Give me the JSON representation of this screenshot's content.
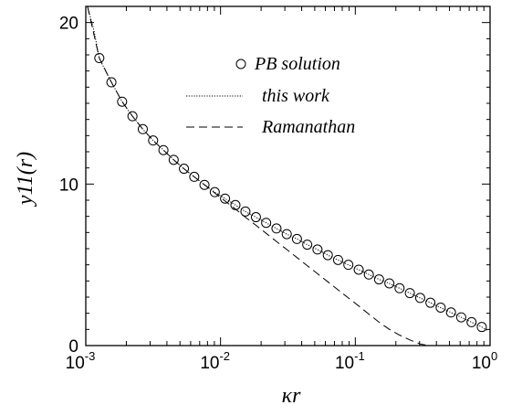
{
  "chart_data": {
    "type": "line",
    "xlabel": "κr",
    "ylabel": "y11(r)",
    "x_scale": "log",
    "xlim": [
      0.001,
      1
    ],
    "ylim": [
      0,
      21
    ],
    "x_ticks": [
      {
        "value": 0.001,
        "base": "10",
        "exp": "-3"
      },
      {
        "value": 0.01,
        "base": "10",
        "exp": "-2"
      },
      {
        "value": 0.1,
        "base": "10",
        "exp": "-1"
      },
      {
        "value": 1,
        "base": "10",
        "exp": "0"
      }
    ],
    "y_ticks": [
      {
        "value": 0,
        "label": "0"
      },
      {
        "value": 10,
        "label": "10"
      },
      {
        "value": 20,
        "label": "20"
      }
    ],
    "grid": false,
    "legend_position": "top-right",
    "series": [
      {
        "name": "PB solution",
        "style": "circles",
        "x": [
          0.00126,
          0.00155,
          0.00186,
          0.00222,
          0.00265,
          0.00316,
          0.00377,
          0.00449,
          0.00535,
          0.00638,
          0.0076,
          0.00906,
          0.0108,
          0.0129,
          0.0153,
          0.0183,
          0.0218,
          0.026,
          0.031,
          0.0369,
          0.044,
          0.0524,
          0.0625,
          0.0745,
          0.0888,
          0.106,
          0.126,
          0.15,
          0.179,
          0.213,
          0.254,
          0.303,
          0.361,
          0.43,
          0.513,
          0.611,
          0.729,
          0.868
        ],
        "y": [
          17.8,
          16.3,
          15.1,
          14.2,
          13.4,
          12.7,
          12.1,
          11.5,
          10.95,
          10.45,
          9.95,
          9.5,
          9.1,
          8.7,
          8.3,
          7.95,
          7.6,
          7.25,
          6.9,
          6.6,
          6.25,
          5.95,
          5.6,
          5.3,
          5.0,
          4.7,
          4.4,
          4.1,
          3.85,
          3.55,
          3.25,
          2.95,
          2.65,
          2.35,
          2.05,
          1.75,
          1.45,
          1.15
        ]
      },
      {
        "name": "this work",
        "style": "dotted",
        "x": [
          0.00103,
          0.00115,
          0.00126,
          0.0014,
          0.00155,
          0.00186,
          0.00222,
          0.00265,
          0.00316,
          0.00377,
          0.00449,
          0.00535,
          0.00638,
          0.0076,
          0.00906,
          0.0108,
          0.0129,
          0.0153,
          0.0183,
          0.0218,
          0.026,
          0.031,
          0.0369,
          0.044,
          0.0524,
          0.0625,
          0.0745,
          0.0888,
          0.106,
          0.126,
          0.15,
          0.179,
          0.213,
          0.254,
          0.303,
          0.361,
          0.43,
          0.513,
          0.611,
          0.729,
          0.868,
          0.95
        ],
        "y": [
          21.0,
          19.5,
          17.8,
          17.0,
          16.3,
          15.1,
          14.2,
          13.4,
          12.7,
          12.1,
          11.5,
          10.95,
          10.45,
          9.95,
          9.5,
          9.1,
          8.7,
          8.3,
          7.95,
          7.6,
          7.25,
          6.9,
          6.6,
          6.25,
          5.95,
          5.6,
          5.3,
          5.0,
          4.7,
          4.4,
          4.1,
          3.85,
          3.55,
          3.25,
          2.95,
          2.65,
          2.35,
          2.05,
          1.75,
          1.45,
          1.15,
          0.95
        ]
      },
      {
        "name": "Ramanathan",
        "style": "dashed",
        "x": [
          0.00103,
          0.00126,
          0.00155,
          0.00186,
          0.00222,
          0.00265,
          0.00316,
          0.00377,
          0.00449,
          0.00535,
          0.00638,
          0.0076,
          0.00906,
          0.0108,
          0.0129,
          0.0153,
          0.0183,
          0.0218,
          0.026,
          0.031,
          0.0369,
          0.044,
          0.0524,
          0.0625,
          0.0745,
          0.0888,
          0.106,
          0.126,
          0.15,
          0.179,
          0.213,
          0.254,
          0.303,
          0.35
        ],
        "y": [
          21.0,
          17.8,
          16.3,
          15.1,
          14.2,
          13.4,
          12.7,
          12.1,
          11.5,
          10.95,
          10.45,
          9.95,
          9.45,
          8.95,
          8.45,
          7.95,
          7.45,
          6.95,
          6.45,
          5.95,
          5.45,
          4.95,
          4.45,
          3.95,
          3.45,
          2.95,
          2.45,
          1.95,
          1.45,
          1.0,
          0.65,
          0.35,
          0.1,
          0.0
        ]
      }
    ]
  }
}
